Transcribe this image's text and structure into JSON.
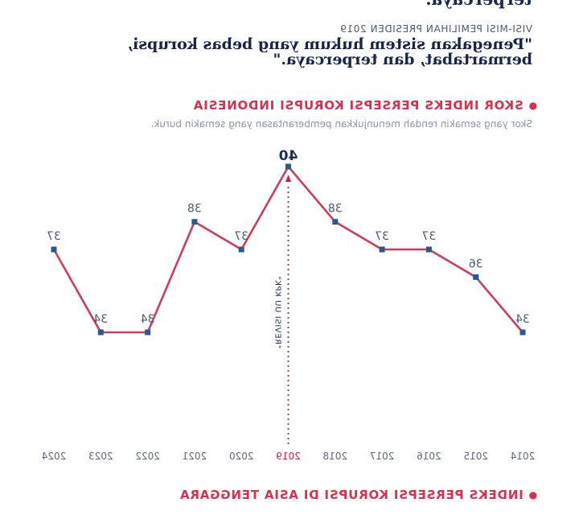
{
  "header": {
    "top_cut_text": "terpercaya.\"",
    "kicker": "VISI-MISI PEMILIHAN PRESIDEN 2019",
    "quote": "\"Penegakan sistem hukum yang bebas korupsi, bermartabat, dan terpercaya.\""
  },
  "section1": {
    "title": "SKOR INDEKS PERSEPSI KORUPSI INDONESIA",
    "subtitle": "Skor yang semakin rendah menunjukkan pemberantasan yang semakin buruk."
  },
  "section2": {
    "title": "INDEKS PERSEPSI KORUPSI DI ASIA TENGGARA"
  },
  "colors": {
    "line": "#cf3c5c",
    "marker": "#2a5a8a",
    "accent": "#d9304e",
    "annotation": "#8a4a8a"
  },
  "chart_data": {
    "type": "line",
    "categories": [
      "2014",
      "2015",
      "2016",
      "2017",
      "2018",
      "2019",
      "2020",
      "2021",
      "2022",
      "2023",
      "2024"
    ],
    "values": [
      34,
      36,
      37,
      37,
      38,
      40,
      37,
      38,
      34,
      34,
      37
    ],
    "highlight_category": "2019",
    "annotation": "\"REVISI UU KPK\"",
    "xlabel": "",
    "ylabel": "",
    "ylim": [
      28,
      42
    ],
    "grid": false,
    "legend": "none"
  }
}
